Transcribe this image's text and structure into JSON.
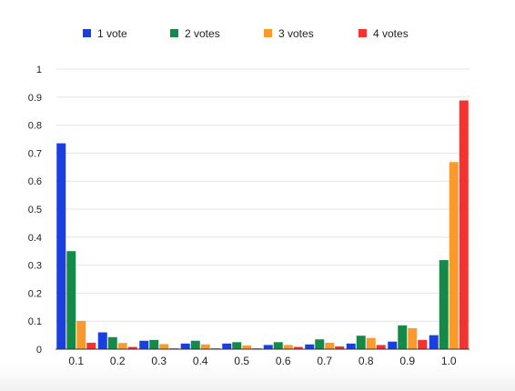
{
  "chart_data": {
    "type": "bar",
    "categories": [
      "0.1",
      "0.2",
      "0.3",
      "0.4",
      "0.5",
      "0.6",
      "0.7",
      "0.8",
      "0.9",
      "1.0"
    ],
    "series": [
      {
        "name": "1 vote",
        "color": "#1a3fe0",
        "values": [
          0.735,
          0.06,
          0.03,
          0.02,
          0.02,
          0.015,
          0.017,
          0.02,
          0.027,
          0.05
        ]
      },
      {
        "name": "2 votes",
        "color": "#138a48",
        "values": [
          0.35,
          0.043,
          0.033,
          0.03,
          0.025,
          0.025,
          0.035,
          0.048,
          0.085,
          0.318
        ]
      },
      {
        "name": "3 votes",
        "color": "#f89a2c",
        "values": [
          0.101,
          0.022,
          0.018,
          0.017,
          0.013,
          0.015,
          0.023,
          0.04,
          0.075,
          0.668
        ]
      },
      {
        "name": "4 votes",
        "color": "#f5322f",
        "values": [
          0.023,
          0.008,
          0.003,
          0.003,
          0.003,
          0.008,
          0.01,
          0.015,
          0.033,
          0.888
        ]
      }
    ],
    "ylim": [
      0,
      1
    ],
    "yticks": [
      "0",
      "0.1",
      "0.2",
      "0.3",
      "0.4",
      "0.5",
      "0.6",
      "0.7",
      "0.8",
      "0.9",
      "1"
    ],
    "legend_position": "top",
    "grid": true
  }
}
